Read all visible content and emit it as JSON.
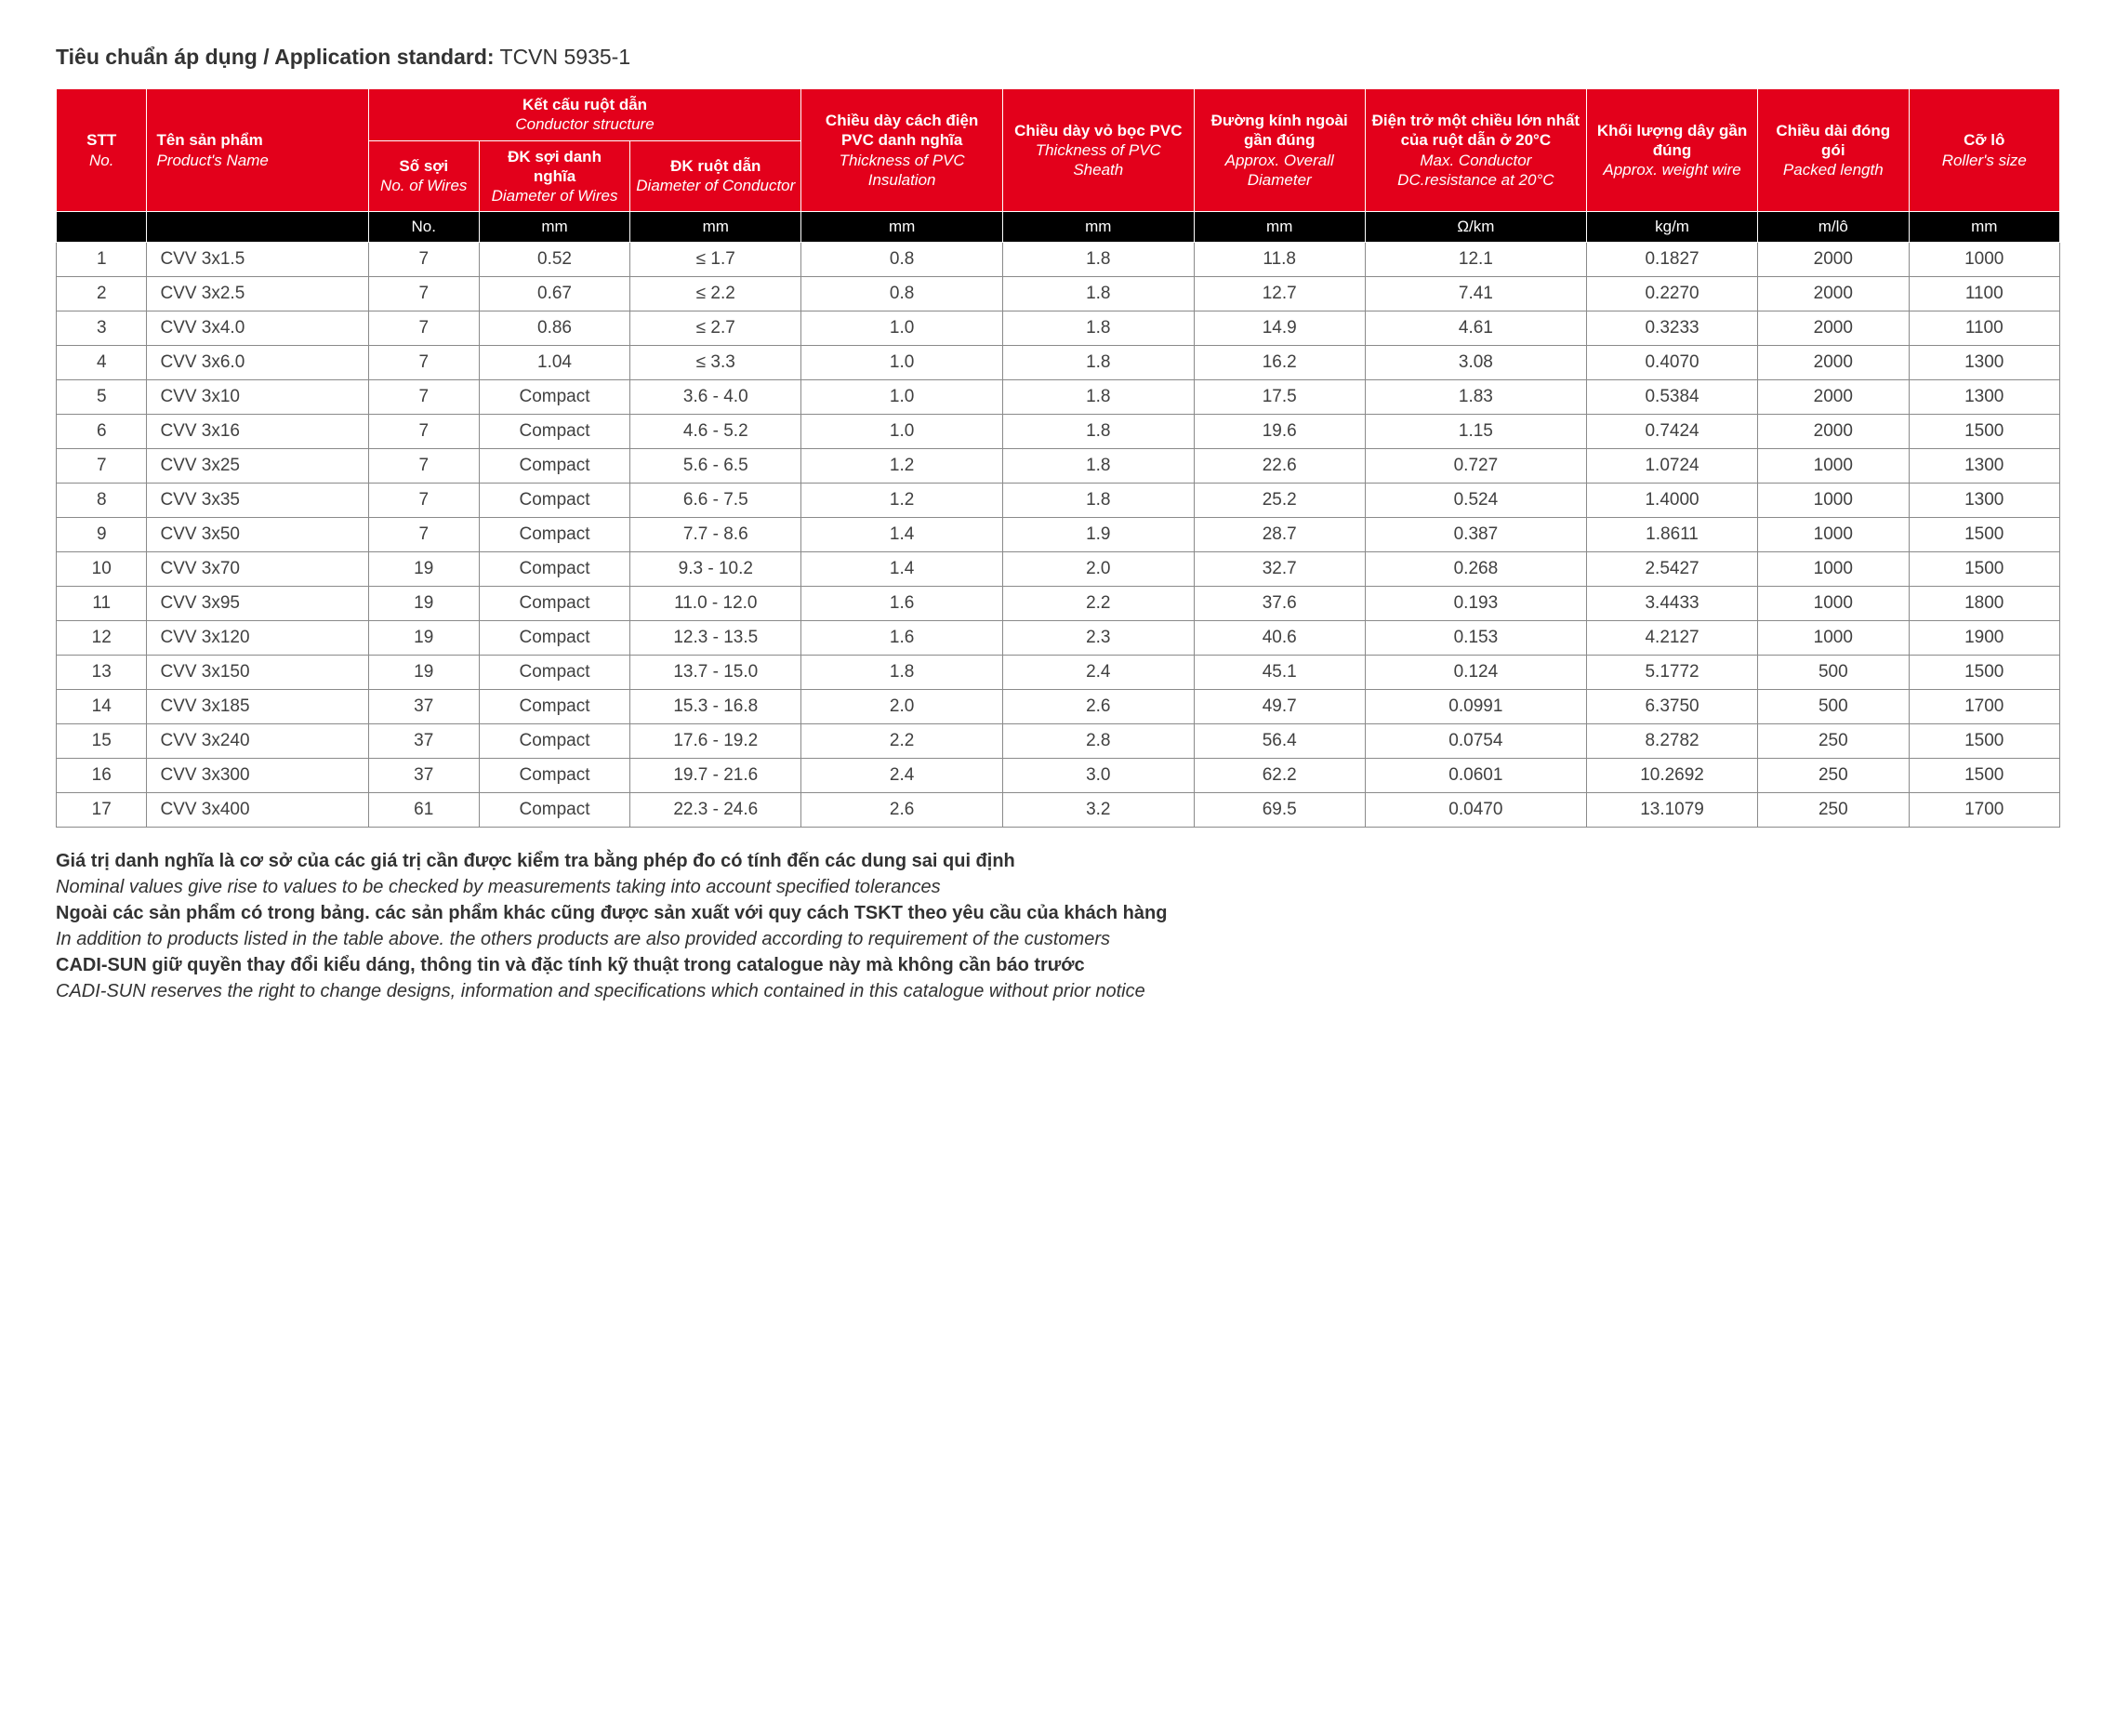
{
  "title": {
    "label_vn": "Tiêu chuẩn áp dụng / Application standard:",
    "value": "TCVN 5935-1"
  },
  "headers": {
    "stt": {
      "vn": "STT",
      "en": "No."
    },
    "name": {
      "vn": "Tên sản phẩm",
      "en": "Product's Name"
    },
    "cond_group": {
      "vn": "Kết cấu ruột dẫn",
      "en": "Conductor structure"
    },
    "wires": {
      "vn": "Số sợi",
      "en": "No. of Wires"
    },
    "dwire": {
      "vn": "ĐK sợi danh nghĩa",
      "en": "Diameter of Wires"
    },
    "dcond": {
      "vn": "ĐK ruột dẫn",
      "en": "Diameter of Conductor"
    },
    "ins": {
      "vn": "Chiều dày cách điện PVC danh nghĩa",
      "en": "Thickness of PVC Insulation"
    },
    "sheath": {
      "vn": "Chiều dày vỏ bọc PVC",
      "en": "Thickness of PVC Sheath"
    },
    "od": {
      "vn": "Đường kính ngoài gần đúng",
      "en": "Approx. Overall Diameter"
    },
    "res": {
      "vn": "Điện trở một chiều lớn nhất của ruột dẫn ở 20°C",
      "en": "Max. Conductor DC.resistance at 20°C"
    },
    "wt": {
      "vn": "Khối lượng dây gần đúng",
      "en": "Approx. weight wire"
    },
    "len": {
      "vn": "Chiều dài đóng gói",
      "en": "Packed length"
    },
    "roll": {
      "vn": "Cỡ lô",
      "en": "Roller's size"
    }
  },
  "units": {
    "stt": "",
    "name": "",
    "wires": "No.",
    "dwire": "mm",
    "dcond": "mm",
    "ins": "mm",
    "sheath": "mm",
    "od": "mm",
    "res": "Ω/km",
    "wt": "kg/m",
    "len": "m/lô",
    "roll": "mm"
  },
  "rows": [
    {
      "stt": "1",
      "name": "CVV 3x1.5",
      "wires": "7",
      "dwire": "0.52",
      "dcond": "≤ 1.7",
      "ins": "0.8",
      "sheath": "1.8",
      "od": "11.8",
      "res": "12.1",
      "wt": "0.1827",
      "len": "2000",
      "roll": "1000"
    },
    {
      "stt": "2",
      "name": "CVV 3x2.5",
      "wires": "7",
      "dwire": "0.67",
      "dcond": "≤ 2.2",
      "ins": "0.8",
      "sheath": "1.8",
      "od": "12.7",
      "res": "7.41",
      "wt": "0.2270",
      "len": "2000",
      "roll": "1100"
    },
    {
      "stt": "3",
      "name": "CVV 3x4.0",
      "wires": "7",
      "dwire": "0.86",
      "dcond": "≤ 2.7",
      "ins": "1.0",
      "sheath": "1.8",
      "od": "14.9",
      "res": "4.61",
      "wt": "0.3233",
      "len": "2000",
      "roll": "1100"
    },
    {
      "stt": "4",
      "name": "CVV 3x6.0",
      "wires": "7",
      "dwire": "1.04",
      "dcond": "≤ 3.3",
      "ins": "1.0",
      "sheath": "1.8",
      "od": "16.2",
      "res": "3.08",
      "wt": "0.4070",
      "len": "2000",
      "roll": "1300"
    },
    {
      "stt": "5",
      "name": "CVV 3x10",
      "wires": "7",
      "dwire": "Compact",
      "dcond": "3.6 - 4.0",
      "ins": "1.0",
      "sheath": "1.8",
      "od": "17.5",
      "res": "1.83",
      "wt": "0.5384",
      "len": "2000",
      "roll": "1300"
    },
    {
      "stt": "6",
      "name": "CVV 3x16",
      "wires": "7",
      "dwire": "Compact",
      "dcond": "4.6 - 5.2",
      "ins": "1.0",
      "sheath": "1.8",
      "od": "19.6",
      "res": "1.15",
      "wt": "0.7424",
      "len": "2000",
      "roll": "1500"
    },
    {
      "stt": "7",
      "name": "CVV 3x25",
      "wires": "7",
      "dwire": "Compact",
      "dcond": "5.6 - 6.5",
      "ins": "1.2",
      "sheath": "1.8",
      "od": "22.6",
      "res": "0.727",
      "wt": "1.0724",
      "len": "1000",
      "roll": "1300"
    },
    {
      "stt": "8",
      "name": "CVV 3x35",
      "wires": "7",
      "dwire": "Compact",
      "dcond": "6.6 - 7.5",
      "ins": "1.2",
      "sheath": "1.8",
      "od": "25.2",
      "res": "0.524",
      "wt": "1.4000",
      "len": "1000",
      "roll": "1300"
    },
    {
      "stt": "9",
      "name": "CVV 3x50",
      "wires": "7",
      "dwire": "Compact",
      "dcond": "7.7 - 8.6",
      "ins": "1.4",
      "sheath": "1.9",
      "od": "28.7",
      "res": "0.387",
      "wt": "1.8611",
      "len": "1000",
      "roll": "1500"
    },
    {
      "stt": "10",
      "name": "CVV 3x70",
      "wires": "19",
      "dwire": "Compact",
      "dcond": "9.3 - 10.2",
      "ins": "1.4",
      "sheath": "2.0",
      "od": "32.7",
      "res": "0.268",
      "wt": "2.5427",
      "len": "1000",
      "roll": "1500"
    },
    {
      "stt": "11",
      "name": "CVV 3x95",
      "wires": "19",
      "dwire": "Compact",
      "dcond": "11.0 - 12.0",
      "ins": "1.6",
      "sheath": "2.2",
      "od": "37.6",
      "res": "0.193",
      "wt": "3.4433",
      "len": "1000",
      "roll": "1800"
    },
    {
      "stt": "12",
      "name": "CVV 3x120",
      "wires": "19",
      "dwire": "Compact",
      "dcond": "12.3 - 13.5",
      "ins": "1.6",
      "sheath": "2.3",
      "od": "40.6",
      "res": "0.153",
      "wt": "4.2127",
      "len": "1000",
      "roll": "1900"
    },
    {
      "stt": "13",
      "name": "CVV 3x150",
      "wires": "19",
      "dwire": "Compact",
      "dcond": "13.7 - 15.0",
      "ins": "1.8",
      "sheath": "2.4",
      "od": "45.1",
      "res": "0.124",
      "wt": "5.1772",
      "len": "500",
      "roll": "1500"
    },
    {
      "stt": "14",
      "name": "CVV 3x185",
      "wires": "37",
      "dwire": "Compact",
      "dcond": "15.3 - 16.8",
      "ins": "2.0",
      "sheath": "2.6",
      "od": "49.7",
      "res": "0.0991",
      "wt": "6.3750",
      "len": "500",
      "roll": "1700"
    },
    {
      "stt": "15",
      "name": "CVV 3x240",
      "wires": "37",
      "dwire": "Compact",
      "dcond": "17.6 - 19.2",
      "ins": "2.2",
      "sheath": "2.8",
      "od": "56.4",
      "res": "0.0754",
      "wt": "8.2782",
      "len": "250",
      "roll": "1500"
    },
    {
      "stt": "16",
      "name": "CVV 3x300",
      "wires": "37",
      "dwire": "Compact",
      "dcond": "19.7 - 21.6",
      "ins": "2.4",
      "sheath": "3.0",
      "od": "62.2",
      "res": "0.0601",
      "wt": "10.2692",
      "len": "250",
      "roll": "1500"
    },
    {
      "stt": "17",
      "name": "CVV 3x400",
      "wires": "61",
      "dwire": "Compact",
      "dcond": "22.3 - 24.6",
      "ins": "2.6",
      "sheath": "3.2",
      "od": "69.5",
      "res": "0.0470",
      "wt": "13.1079",
      "len": "250",
      "roll": "1700"
    }
  ],
  "notes": [
    {
      "vn": "Giá trị danh nghĩa là cơ sở của các giá trị cần được kiểm tra bằng phép đo có tính đến các dung sai qui định",
      "en": "Nominal values give rise to values to be checked by measurements taking into account specified tolerances"
    },
    {
      "vn": "Ngoài các sản phẩm có trong bảng. các sản phẩm khác cũng được sản xuất với quy cách TSKT theo yêu cầu của khách hàng",
      "en": "In addition to products listed in the table above. the others products are also provided according to requirement of the customers"
    },
    {
      "vn": "CADI-SUN giữ quyền thay đổi kiểu dáng, thông tin và đặc tính kỹ thuật trong catalogue này mà không cần báo trước",
      "en": "CADI-SUN reserves the right to change designs, information and specifications which contained in this catalogue without prior notice"
    }
  ],
  "style": {
    "header_bg": "#e3001b",
    "units_bg": "#000000",
    "cell_border": "#8a8a8a",
    "text_color": "#404040"
  }
}
